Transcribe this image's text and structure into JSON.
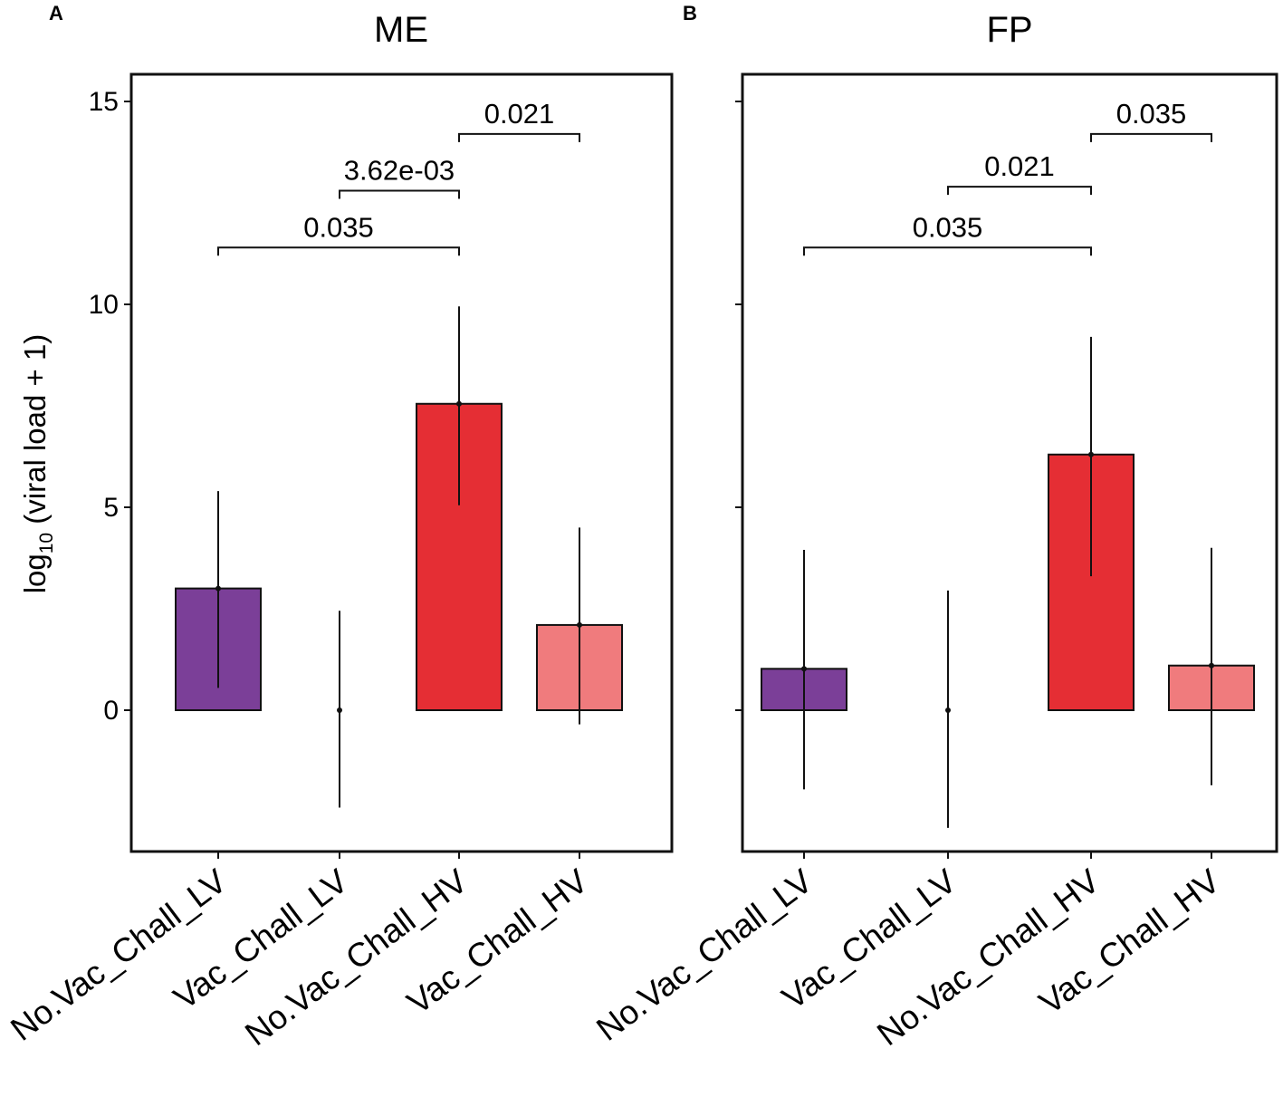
{
  "chart_data": [
    {
      "type": "bar",
      "panel": "A",
      "title": "ME",
      "ylabel_main": "log",
      "ylabel_sub": "10",
      "ylabel_rest": " (viral load + 1)",
      "ylim": [
        -3.5,
        15.0
      ],
      "yticks": [
        0,
        5,
        10,
        15
      ],
      "categories": [
        "No.Vac_Chall_LV",
        "Vac_Chall_LV",
        "No.Vac_Chall_HV",
        "Vac_Chall_HV"
      ],
      "values": [
        3.0,
        0.0,
        7.55,
        2.1
      ],
      "error_low": [
        0.55,
        -2.4,
        5.05,
        -0.35
      ],
      "error_high": [
        5.4,
        2.45,
        9.95,
        4.5
      ],
      "colors": [
        "#7b3f98",
        "#7b3f98",
        "#e52e34",
        "#f07b7d"
      ],
      "comparisons": [
        {
          "from": 0,
          "to": 2,
          "label": "0.035",
          "y": 11.4
        },
        {
          "from": 1,
          "to": 2,
          "label": "3.62e-03",
          "y": 12.8
        },
        {
          "from": 2,
          "to": 3,
          "label": "0.021",
          "y": 14.2
        }
      ]
    },
    {
      "type": "bar",
      "panel": "B",
      "title": "FP",
      "ylim": [
        -3.5,
        15.0
      ],
      "yticks": [
        0,
        5,
        10,
        15
      ],
      "categories": [
        "No.Vac_Chall_LV",
        "Vac_Chall_LV",
        "No.Vac_Chall_HV",
        "Vac_Chall_HV"
      ],
      "values": [
        1.02,
        0.0,
        6.3,
        1.1
      ],
      "error_low": [
        -1.95,
        -2.9,
        3.3,
        -1.85
      ],
      "error_high": [
        3.95,
        2.95,
        9.2,
        4.0
      ],
      "colors": [
        "#7b3f98",
        "#7b3f98",
        "#e52e34",
        "#f07b7d"
      ],
      "comparisons": [
        {
          "from": 0,
          "to": 2,
          "label": "0.035",
          "y": 11.4
        },
        {
          "from": 1,
          "to": 2,
          "label": "0.021",
          "y": 12.9
        },
        {
          "from": 2,
          "to": 3,
          "label": "0.035",
          "y": 14.2
        }
      ]
    }
  ]
}
